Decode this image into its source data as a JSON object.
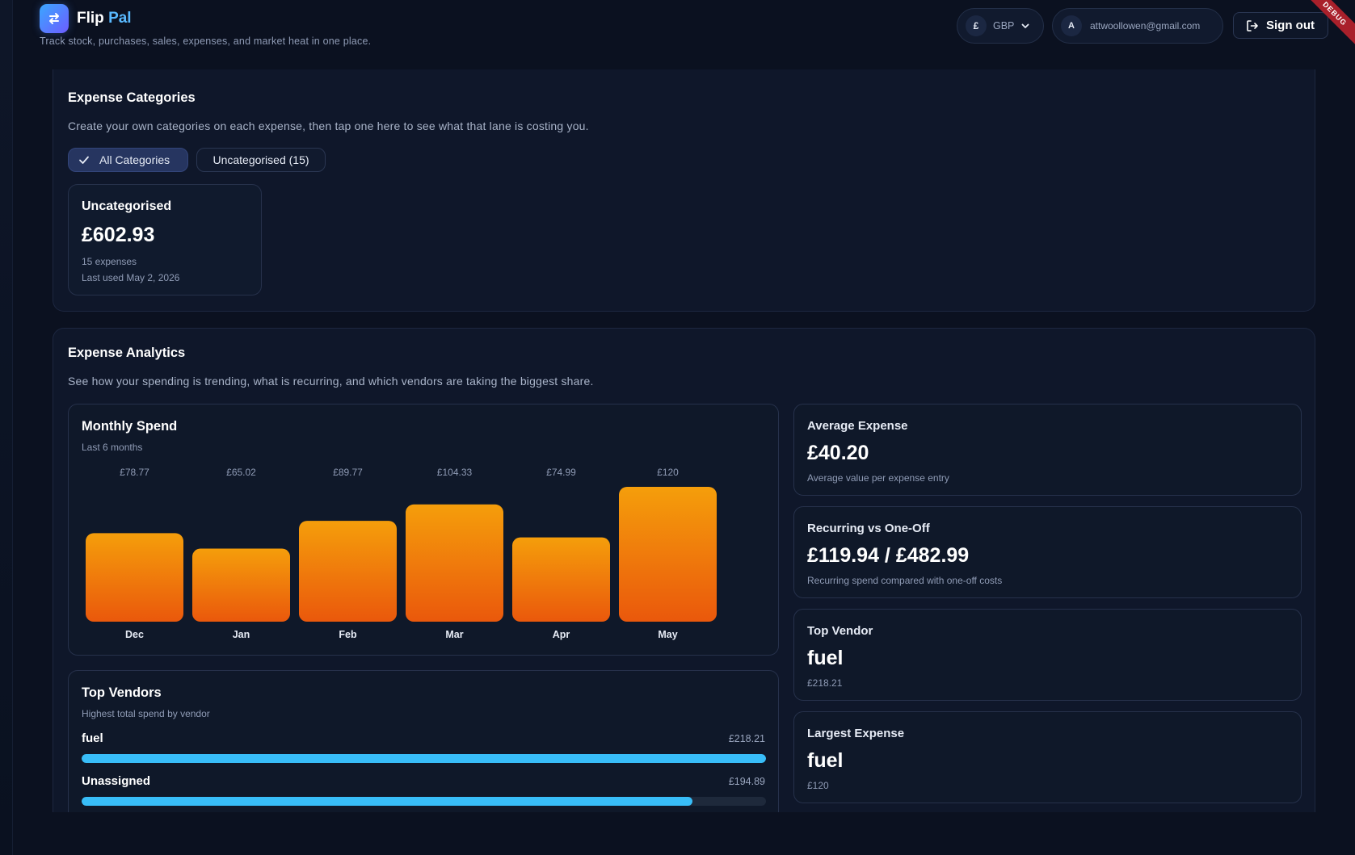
{
  "brand": {
    "name_main": "Flip",
    "name_accent": "Pal",
    "tagline": "Track stock, purchases, sales, expenses, and market heat in one place."
  },
  "header": {
    "currency_symbol": "£",
    "currency_code": "GBP",
    "avatar_initial": "A",
    "email": "attwoollowen@gmail.com",
    "signout_label": "Sign out",
    "ribbon": "DEBUG"
  },
  "categories": {
    "title": "Expense Categories",
    "subtitle": "Create your own categories on each expense, then tap one here to see what that lane is costing you.",
    "chips": [
      {
        "label": "All Categories",
        "selected": true
      },
      {
        "label": "Uncategorised (15)",
        "selected": false
      }
    ],
    "card": {
      "name": "Uncategorised",
      "amount": "£602.93",
      "count": "15 expenses",
      "last_used": "Last used May 2, 2026"
    }
  },
  "analytics": {
    "title": "Expense Analytics",
    "subtitle": "See how your spending is trending, what is recurring, and which vendors are taking the biggest share.",
    "monthly": {
      "title": "Monthly Spend",
      "subtitle": "Last 6 months"
    },
    "vendors": {
      "title": "Top Vendors",
      "subtitle": "Highest total spend by vendor",
      "items": [
        {
          "name": "fuel",
          "amount": "£218.21",
          "value": 218.21
        },
        {
          "name": "Unassigned",
          "amount": "£194.89",
          "value": 194.89
        }
      ]
    },
    "stats": [
      {
        "label": "Average Expense",
        "value": "£40.20",
        "desc": "Average value per expense entry"
      },
      {
        "label": "Recurring vs One-Off",
        "value": "£119.94 / £482.99",
        "desc": "Recurring spend compared with one-off costs"
      },
      {
        "label": "Top Vendor",
        "value": "fuel",
        "desc": "£218.21"
      },
      {
        "label": "Largest Expense",
        "value": "fuel",
        "desc": "£120"
      }
    ]
  },
  "chart_data": {
    "type": "bar",
    "title": "Monthly Spend",
    "subtitle": "Last 6 months",
    "categories": [
      "Dec",
      "Jan",
      "Feb",
      "Mar",
      "Apr",
      "May"
    ],
    "values": [
      78.77,
      65.02,
      89.77,
      104.33,
      74.99,
      120
    ],
    "value_labels": [
      "£78.77",
      "£65.02",
      "£89.77",
      "£104.33",
      "£74.99",
      "£120"
    ],
    "ylim": [
      0,
      120
    ],
    "grid": false,
    "colors": {
      "bar_top": "#f59e0b",
      "bar_bottom": "#ea580c"
    }
  }
}
